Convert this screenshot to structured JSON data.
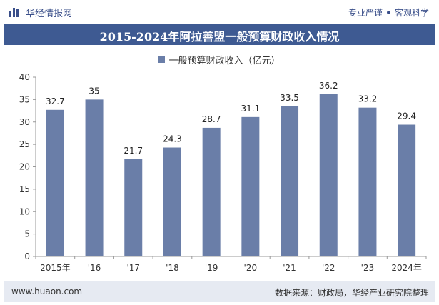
{
  "header": {
    "brand": "华经情报网",
    "right_text_1": "专业严谨",
    "right_text_2": "客观科学"
  },
  "colors": {
    "title_bar": "#3e5a92",
    "bar": "#6a7ea8",
    "footer_bg": "#e6eaf2"
  },
  "footer": {
    "website": "www.huaon.com",
    "source": "数据来源：财政局，华经产业研究院整理"
  },
  "chart_data": {
    "type": "bar",
    "title": "2015-2024年阿拉善盟一般预算财政收入情况",
    "categories": [
      "2015年",
      "'16",
      "'17",
      "'18",
      "'19",
      "'20",
      "'21",
      "'22",
      "'23",
      "2024年"
    ],
    "series": [
      {
        "name": "一般预算财政收入（亿元）",
        "values": [
          32.7,
          35,
          21.7,
          24.3,
          28.7,
          31.1,
          33.5,
          36.2,
          33.2,
          29.4
        ],
        "labels": [
          "32.7",
          "35",
          "21.7",
          "24.3",
          "28.7",
          "31.1",
          "33.5",
          "36.2",
          "33.2",
          "29.4"
        ]
      }
    ],
    "yticks": [
      "0",
      "5",
      "10",
      "15",
      "20",
      "25",
      "30",
      "35",
      "40"
    ],
    "ylim": [
      0,
      40
    ],
    "grid": false,
    "legend_position": "top-center"
  }
}
